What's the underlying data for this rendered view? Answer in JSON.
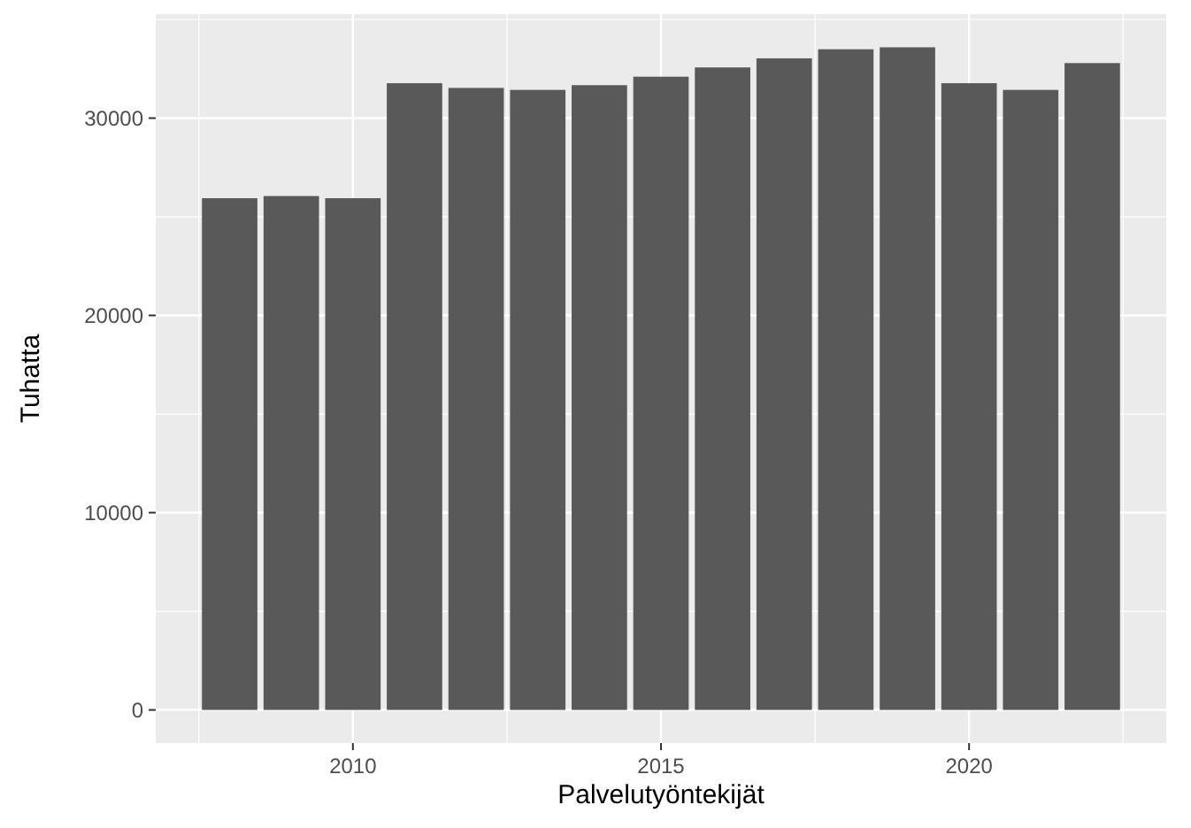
{
  "chart_data": {
    "type": "bar",
    "xlabel": "Palvelutyöntekijät",
    "ylabel": "Tuhatta",
    "x": [
      2008,
      2009,
      2010,
      2011,
      2012,
      2013,
      2014,
      2015,
      2016,
      2017,
      2018,
      2019,
      2020,
      2021,
      2022
    ],
    "values": [
      25940,
      26050,
      25940,
      31770,
      31530,
      31430,
      31670,
      32100,
      32570,
      33030,
      33490,
      33590,
      31770,
      31430,
      32790
    ],
    "color": "#595959",
    "xlim": [
      2006.8,
      2023.2
    ],
    "xticks": [
      {
        "value": 2007.5,
        "label": null
      },
      2010,
      {
        "value": 2012.5,
        "label": null
      },
      2015,
      {
        "value": 2017.5,
        "label": null
      },
      2020,
      {
        "value": 2022.5,
        "label": null
      }
    ],
    "ylim": [
      -1680,
      35270
    ],
    "yticks": [
      0,
      {
        "value": 5000,
        "label": null
      },
      10000,
      {
        "value": 15000,
        "label": null
      },
      20000,
      {
        "value": 25000,
        "label": null
      },
      30000,
      {
        "value": 35000,
        "label": null
      }
    ],
    "grid": true
  }
}
